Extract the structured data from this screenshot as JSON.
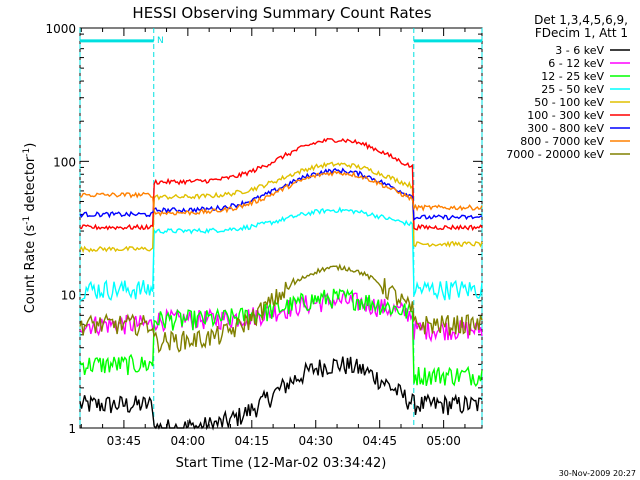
{
  "chart_data": {
    "type": "line",
    "title": "HESSI Observing Summary Count Rates",
    "xlabel": "Start Time (12-Mar-02 03:34:42)",
    "ylabel_main": "Count Rate (s",
    "ylabel_sup1": "-1",
    "ylabel_mid": " detector",
    "ylabel_sup2": "-1",
    "ylabel_end": ")",
    "yscale": "log",
    "ylim": [
      1,
      1000
    ],
    "xlim": [
      "03:34:42",
      "05:09:00"
    ],
    "grid": false,
    "x_ticks": [
      "03:45",
      "04:00",
      "04:15",
      "04:30",
      "04:45",
      "05:00"
    ],
    "y_ticks": [
      "1",
      "10",
      "100",
      "1000"
    ],
    "legend_placement": "right",
    "legend_header": [
      "Det 1,3,4,5,6,9,",
      "FDecim 1, Att 1"
    ],
    "annotations": {
      "night_marker": "N",
      "timestamp": "30-Nov-2009 20:27"
    },
    "shaded_intervals": [
      {
        "start": "03:34:42",
        "end": "03:52:00",
        "level": 800
      },
      {
        "start": "04:53:00",
        "end": "05:09:00",
        "level": 800
      }
    ],
    "series": [
      {
        "name": "3 - 6 keV",
        "color": "#000000",
        "values": {
          "pre": 1.5,
          "base": 1.0,
          "peak": 3.0,
          "post": 1.5
        }
      },
      {
        "name": "6 - 12 keV",
        "color": "#ff00ff",
        "values": {
          "pre": 6.0,
          "base": 6.5,
          "peak": 9.0,
          "post": 5.5
        }
      },
      {
        "name": "12 - 25 keV",
        "color": "#00ff00",
        "values": {
          "pre": 3.0,
          "base": 6.5,
          "peak": 9.5,
          "post": 2.5
        }
      },
      {
        "name": "25 - 50 keV",
        "color": "#00ffff",
        "values": {
          "pre": 11.0,
          "base": 30.0,
          "peak": 43.0,
          "post": 11.0
        }
      },
      {
        "name": "50 - 100 keV",
        "color": "#e0c000",
        "values": {
          "pre": 22.0,
          "base": 54.0,
          "peak": 95.0,
          "post": 24.0
        }
      },
      {
        "name": "100 - 300 keV",
        "color": "#ff0000",
        "values": {
          "pre": 32.0,
          "base": 70.0,
          "peak": 145.0,
          "post": 32.0
        }
      },
      {
        "name": "300 - 800 keV",
        "color": "#0000ff",
        "values": {
          "pre": 40.0,
          "base": 43.0,
          "peak": 85.0,
          "post": 38.0
        }
      },
      {
        "name": "800 - 7000 keV",
        "color": "#ff8000",
        "values": {
          "pre": 56.0,
          "base": 41.0,
          "peak": 82.0,
          "post": 45.0
        }
      },
      {
        "name": "7000 - 20000 keV",
        "color": "#808000",
        "values": {
          "pre": 6.0,
          "base": 4.5,
          "peak": 16.0,
          "post": 6.0
        }
      }
    ]
  }
}
